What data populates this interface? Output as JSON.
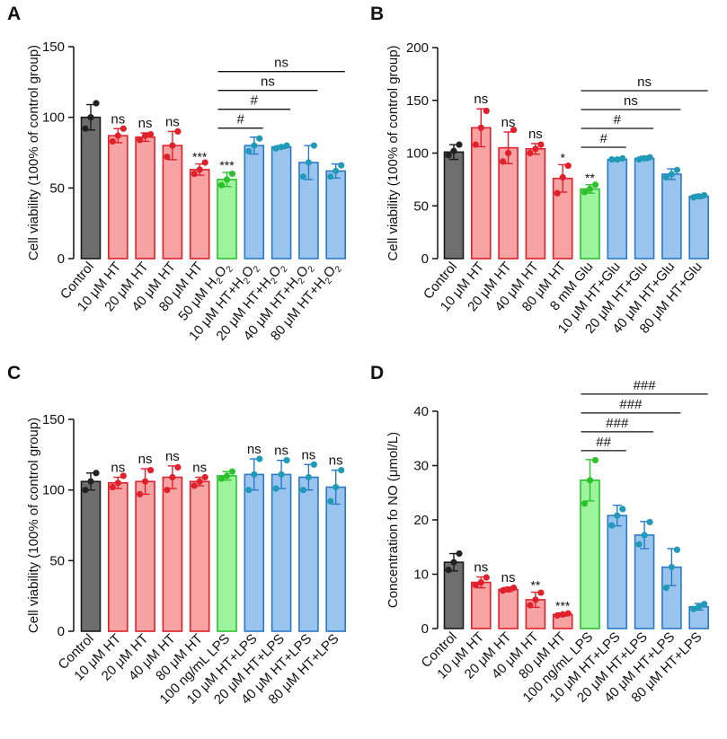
{
  "colors": {
    "control_fill": "#6e6e6e",
    "control_edge": "#1a1a1a",
    "control_dot": "#222222",
    "ht_fill": "#f7a3a3",
    "ht_edge": "#e0202a",
    "ht_dot": "#e0202a",
    "stim_fill": "#9cf59c",
    "stim_edge": "#2dc22d",
    "stim_dot": "#2dc22d",
    "treat_fill": "#98c4ee",
    "treat_edge": "#2a79c8",
    "treat_dot": "#1f9bb8",
    "axis": "#111111"
  },
  "chart_data": [
    {
      "panel": "A",
      "type": "bar",
      "ylabel": "Cell viability (100% of control group)",
      "ylim": [
        0,
        150
      ],
      "yticks": [
        0,
        50,
        100,
        150
      ],
      "categories": [
        "Control",
        "10 μM HT",
        "20 μM HT",
        "40 μM HT",
        "80 μM HT",
        "50 μM H₂O₂",
        "10 μM HT+H₂O₂",
        "20 μM HT+H₂O₂",
        "40 μM HT+H₂O₂",
        "80 μM HT+H₂O₂"
      ],
      "groups": [
        "control",
        "ht",
        "ht",
        "ht",
        "ht",
        "stim",
        "treat",
        "treat",
        "treat",
        "treat"
      ],
      "values": [
        100,
        87,
        86,
        80,
        63,
        56,
        80,
        79,
        68,
        62
      ],
      "errors": [
        9,
        5,
        3,
        10,
        4,
        5,
        6,
        1,
        12,
        5
      ],
      "points": [
        [
          92,
          100,
          110
        ],
        [
          83,
          87,
          92
        ],
        [
          84,
          87,
          88
        ],
        [
          72,
          80,
          90
        ],
        [
          60,
          63,
          68
        ],
        [
          52,
          56,
          60
        ],
        [
          76,
          80,
          85
        ],
        [
          78,
          79,
          80
        ],
        [
          58,
          68,
          80
        ],
        [
          58,
          62,
          66
        ]
      ],
      "labels": [
        "",
        "ns",
        "ns",
        "ns",
        "***",
        "***",
        "",
        "",
        "",
        ""
      ],
      "comparisons": [
        {
          "from": 5,
          "to": 6,
          "label": "#"
        },
        {
          "from": 5,
          "to": 7,
          "label": "#"
        },
        {
          "from": 5,
          "to": 8,
          "label": "ns"
        },
        {
          "from": 5,
          "to": 9,
          "label": "ns"
        }
      ]
    },
    {
      "panel": "B",
      "type": "bar",
      "ylabel": "Cell viability (100% of control group)",
      "ylim": [
        0,
        200
      ],
      "yticks": [
        0,
        50,
        100,
        150,
        200
      ],
      "categories": [
        "Control",
        "10 μM HT",
        "20 μM HT",
        "40 μM HT",
        "80 μM HT",
        "8 mM Glu",
        "10 μM HT+Glu",
        "20 μM HT+Glu",
        "40 μM HT+Glu",
        "80 μM HT+Glu"
      ],
      "groups": [
        "control",
        "ht",
        "ht",
        "ht",
        "ht",
        "stim",
        "treat",
        "treat",
        "treat",
        "treat"
      ],
      "values": [
        101,
        124,
        105,
        104,
        76,
        66,
        94,
        95,
        80,
        59
      ],
      "errors": [
        7,
        18,
        15,
        5,
        13,
        4,
        1,
        2,
        5,
        2
      ],
      "points": [
        [
          98,
          102,
          108
        ],
        [
          108,
          124,
          140
        ],
        [
          92,
          100,
          122
        ],
        [
          100,
          104,
          108
        ],
        [
          62,
          77,
          88
        ],
        [
          63,
          66,
          70
        ],
        [
          94,
          94,
          95
        ],
        [
          94,
          95,
          96
        ],
        [
          77,
          80,
          84
        ],
        [
          58,
          59,
          60
        ]
      ],
      "labels": [
        "",
        "ns",
        "ns",
        "ns",
        "*",
        "**",
        "",
        "",
        "",
        ""
      ],
      "comparisons": [
        {
          "from": 5,
          "to": 6,
          "label": "#"
        },
        {
          "from": 5,
          "to": 7,
          "label": "#"
        },
        {
          "from": 5,
          "to": 8,
          "label": "ns"
        },
        {
          "from": 5,
          "to": 9,
          "label": "ns"
        }
      ]
    },
    {
      "panel": "C",
      "type": "bar",
      "ylabel": "Cell viability (100% of control group)",
      "ylim": [
        0,
        150
      ],
      "yticks": [
        0,
        50,
        100,
        150
      ],
      "categories": [
        "Control",
        "10 μM HT",
        "20 μM HT",
        "40 μM HT",
        "80 μM HT",
        "100 ng/mL LPS",
        "10 μM HT+LPS",
        "20 μM HT+LPS",
        "40 μM HT+LPS",
        "80 μM HT+LPS"
      ],
      "groups": [
        "control",
        "ht",
        "ht",
        "ht",
        "ht",
        "stim",
        "treat",
        "treat",
        "treat",
        "treat"
      ],
      "values": [
        106,
        105,
        106,
        109,
        106,
        110,
        111,
        111,
        109,
        102
      ],
      "errors": [
        6,
        4,
        9,
        8,
        3,
        3,
        11,
        10,
        9,
        12
      ],
      "points": [
        [
          100,
          106,
          112
        ],
        [
          102,
          105,
          110
        ],
        [
          97,
          106,
          114
        ],
        [
          100,
          109,
          116
        ],
        [
          103,
          106,
          109
        ],
        [
          108,
          110,
          113
        ],
        [
          100,
          111,
          122
        ],
        [
          101,
          111,
          121
        ],
        [
          100,
          109,
          118
        ],
        [
          92,
          102,
          114
        ]
      ],
      "labels": [
        "",
        "ns",
        "ns",
        "ns",
        "ns",
        "",
        "ns",
        "ns",
        "ns",
        "ns"
      ],
      "comparisons": []
    },
    {
      "panel": "D",
      "type": "bar",
      "ylabel": "Concentration fo NO (μmol/L)",
      "ylim": [
        0,
        40
      ],
      "yticks": [
        0,
        10,
        20,
        30,
        40
      ],
      "categories": [
        "Control",
        "10 μM HT",
        "20 μM HT",
        "40 μM HT",
        "80 μM HT",
        "100 ng/mL LPS",
        "10 μM HT+LPS",
        "20 μM HT+LPS",
        "40 μM HT+LPS",
        "80 μM HT+LPS"
      ],
      "groups": [
        "control",
        "ht",
        "ht",
        "ht",
        "ht",
        "stim",
        "treat",
        "treat",
        "treat",
        "treat"
      ],
      "values": [
        12.2,
        8.5,
        7.2,
        5.3,
        2.6,
        27.3,
        20.8,
        17.2,
        11.3,
        4.0
      ],
      "errors": [
        1.6,
        1.0,
        0.4,
        1.4,
        0.3,
        3.8,
        1.9,
        2.5,
        3.4,
        0.6
      ],
      "points": [
        [
          10.8,
          12.2,
          13.8
        ],
        [
          8.0,
          8.5,
          9.4
        ],
        [
          7.0,
          7.2,
          7.5
        ],
        [
          4.3,
          5.3,
          6.6
        ],
        [
          2.4,
          2.6,
          2.8
        ],
        [
          23.0,
          27.3,
          31.0
        ],
        [
          19.0,
          20.8,
          22.0
        ],
        [
          15.5,
          17.2,
          19.6
        ],
        [
          7.5,
          11.3,
          14.5
        ],
        [
          3.6,
          4.0,
          4.5
        ]
      ],
      "labels": [
        "",
        "ns",
        "ns",
        "**",
        "***",
        "",
        "",
        "",
        "",
        ""
      ],
      "comparisons": [
        {
          "from": 5,
          "to": 6,
          "label": "##"
        },
        {
          "from": 5,
          "to": 7,
          "label": "###"
        },
        {
          "from": 5,
          "to": 8,
          "label": "###"
        },
        {
          "from": 5,
          "to": 9,
          "label": "###"
        }
      ]
    }
  ]
}
